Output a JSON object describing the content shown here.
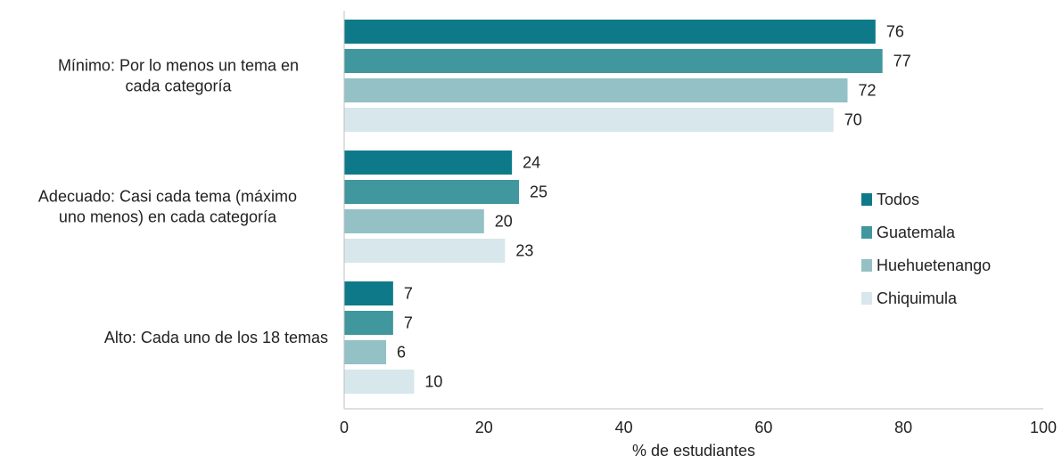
{
  "chart_data": {
    "type": "bar",
    "orientation": "horizontal",
    "categories": [
      [
        "Mínimo: Por lo menos un tema en",
        "cada categoría"
      ],
      [
        "Adecuado: Casi cada tema (máximo",
        "uno menos) en cada categoría"
      ],
      [
        "Alto: Cada uno de los 18 temas"
      ]
    ],
    "series": [
      {
        "name": "Todos",
        "color": "#0e7a89",
        "values": [
          76,
          24,
          7
        ]
      },
      {
        "name": "Guatemala",
        "color": "#40979d",
        "values": [
          77,
          25,
          7
        ]
      },
      {
        "name": "Huehuetenango",
        "color": "#93c1c5",
        "values": [
          72,
          20,
          6
        ]
      },
      {
        "name": "Chiquimula",
        "color": "#d7e7eb",
        "values": [
          70,
          23,
          10
        ]
      }
    ],
    "xlabel": "% de estudiantes",
    "xlim": [
      0,
      100
    ],
    "xticks": [
      "0",
      "20",
      "40",
      "60",
      "80",
      "100"
    ],
    "legend_position": "right",
    "grid": false
  }
}
